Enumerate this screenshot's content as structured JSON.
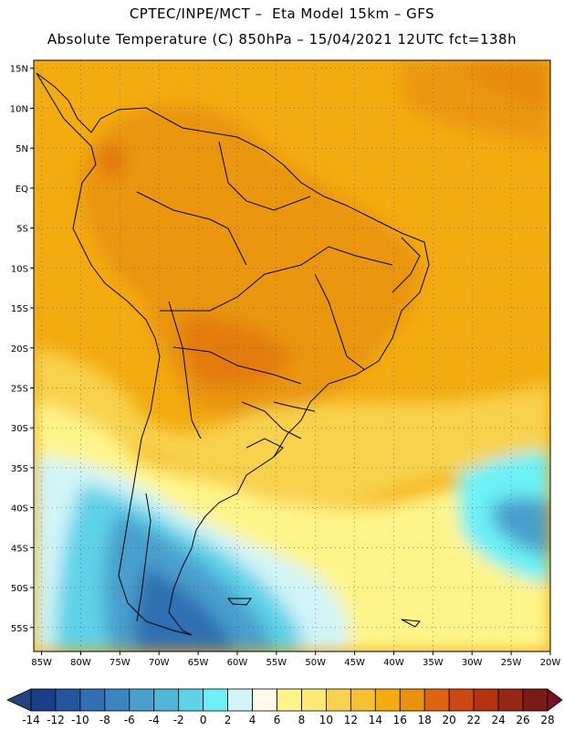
{
  "header": {
    "title_line1": "CPTEC/INPE/MCT –  Eta Model 15km – GFS",
    "title_line2": "Absolute Temperature (C) 850hPa – 15/04/2021 12UTC fct=138h"
  },
  "map": {
    "variable": "Absolute Temperature (C)",
    "level": "850hPa",
    "lon_range": [
      -86,
      -20
    ],
    "lat_range": [
      -58,
      16
    ],
    "lat_ticks": [
      {
        "value": 15,
        "label": "15N"
      },
      {
        "value": 10,
        "label": "10N"
      },
      {
        "value": 5,
        "label": "5N"
      },
      {
        "value": 0,
        "label": "EQ"
      },
      {
        "value": -5,
        "label": "5S"
      },
      {
        "value": -10,
        "label": "10S"
      },
      {
        "value": -15,
        "label": "15S"
      },
      {
        "value": -20,
        "label": "20S"
      },
      {
        "value": -25,
        "label": "25S"
      },
      {
        "value": -30,
        "label": "30S"
      },
      {
        "value": -35,
        "label": "35S"
      },
      {
        "value": -40,
        "label": "40S"
      },
      {
        "value": -45,
        "label": "45S"
      },
      {
        "value": -50,
        "label": "50S"
      },
      {
        "value": -55,
        "label": "55S"
      }
    ],
    "lon_ticks": [
      {
        "value": -85,
        "label": "85W"
      },
      {
        "value": -80,
        "label": "80W"
      },
      {
        "value": -75,
        "label": "75W"
      },
      {
        "value": -70,
        "label": "70W"
      },
      {
        "value": -65,
        "label": "65W"
      },
      {
        "value": -60,
        "label": "60W"
      },
      {
        "value": -55,
        "label": "55W"
      },
      {
        "value": -50,
        "label": "50W"
      },
      {
        "value": -45,
        "label": "45W"
      },
      {
        "value": -40,
        "label": "40W"
      },
      {
        "value": -35,
        "label": "35W"
      },
      {
        "value": -30,
        "label": "30W"
      },
      {
        "value": -25,
        "label": "25W"
      },
      {
        "value": -20,
        "label": "20W"
      }
    ]
  },
  "legend": {
    "colors": [
      "#1b3e8a",
      "#24559e",
      "#2f6fb2",
      "#3b86c2",
      "#4a9fcc",
      "#51b7d8",
      "#5fd2e8",
      "#6cf0f6",
      "#d2f4f8",
      "#fffbe8",
      "#fff48a",
      "#ffe873",
      "#f8d24e",
      "#f6c131",
      "#f3ac10",
      "#e8920d",
      "#de6410",
      "#cc4812",
      "#b43410",
      "#962812",
      "#7a1c14"
    ],
    "under_color": "#25437e",
    "over_color": "#7c0f24",
    "ticks": [
      "-14",
      "-12",
      "-10",
      "-8",
      "-6",
      "-4",
      "-2",
      "0",
      "2",
      "4",
      "6",
      "8",
      "10",
      "12",
      "14",
      "16",
      "18",
      "20",
      "22",
      "24",
      "26",
      "28"
    ]
  }
}
